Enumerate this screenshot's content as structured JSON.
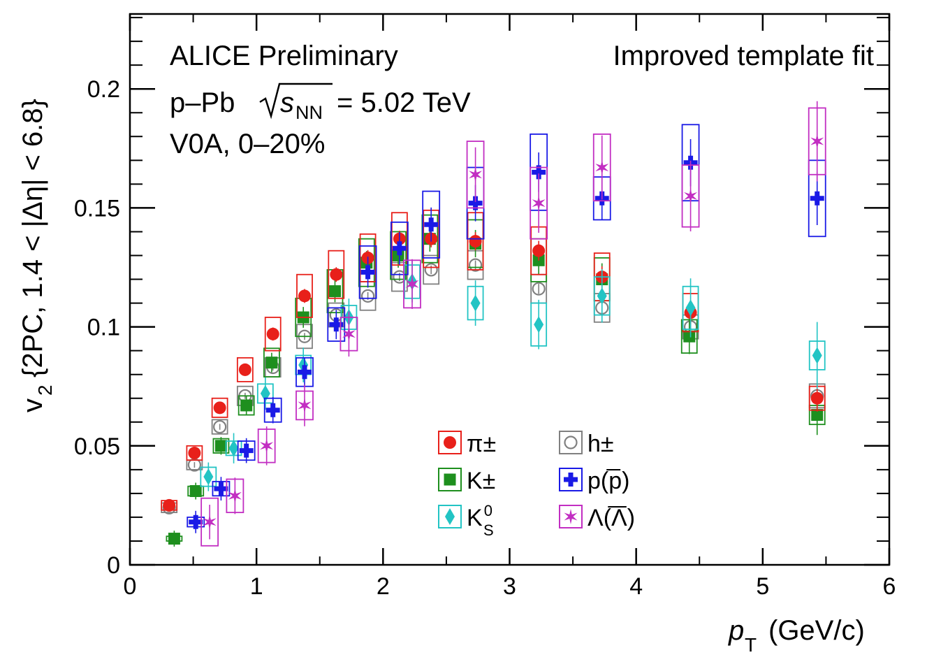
{
  "chart_data": {
    "type": "scatter",
    "title": "",
    "xlabel": "(GeV/c)",
    "xlabel_symbol": "p",
    "xlabel_sub": "T",
    "ylabel": "{2PC, 1.4 < |Δη| < 6.8}",
    "ylabel_symbol": "v",
    "ylabel_sub": "2",
    "xlim": [
      0,
      6
    ],
    "ylim": [
      0,
      0.2
    ],
    "x_ticks": [
      "0",
      "1",
      "2",
      "3",
      "4",
      "5",
      "6"
    ],
    "y_ticks": [
      "0",
      "0.05",
      "0.1",
      "0.15",
      "0.2"
    ],
    "annotations": {
      "line1": "ALICE Preliminary",
      "line2_prefix": "p–Pb",
      "line2_s": "s",
      "line2_sub": "NN",
      "line2_value": "= 5.02 TeV",
      "line3": "V0A, 0–20%",
      "right": "Improved template fit"
    },
    "legend_position": "bottom-center",
    "series": [
      {
        "name": "π±",
        "color": "#e8201a",
        "marker": "circle",
        "x": [
          0.31,
          0.51,
          0.71,
          0.91,
          1.13,
          1.38,
          1.63,
          1.88,
          2.13,
          2.38,
          2.73,
          3.23,
          3.73,
          4.43,
          5.43
        ],
        "y": [
          0.025,
          0.047,
          0.066,
          0.082,
          0.097,
          0.113,
          0.122,
          0.129,
          0.137,
          0.137,
          0.136,
          0.132,
          0.121,
          0.106,
          0.07
        ],
        "sys": [
          0.002,
          0.003,
          0.004,
          0.005,
          0.007,
          0.009,
          0.01,
          0.01,
          0.011,
          0.012,
          0.012,
          0.01,
          0.01,
          0.008,
          0.005
        ]
      },
      {
        "name": "K±",
        "color": "#1e8f1e",
        "marker": "square",
        "x": [
          0.35,
          0.52,
          0.72,
          0.92,
          1.12,
          1.37,
          1.62,
          1.87,
          2.12,
          2.37,
          2.73,
          3.23,
          3.73,
          4.42,
          5.43
        ],
        "y": [
          0.011,
          0.031,
          0.05,
          0.067,
          0.085,
          0.104,
          0.115,
          0.127,
          0.13,
          0.137,
          0.135,
          0.128,
          0.12,
          0.096,
          0.063
        ],
        "sys": [
          0.001,
          0.002,
          0.003,
          0.004,
          0.006,
          0.008,
          0.009,
          0.01,
          0.01,
          0.01,
          0.01,
          0.009,
          0.009,
          0.007,
          0.004
        ]
      },
      {
        "name": "K",
        "label_sup": "0",
        "label_sub": "S",
        "color": "#22c4c4",
        "marker": "diamond",
        "x": [
          0.62,
          0.82,
          1.07,
          1.37,
          1.73,
          2.23,
          2.73,
          3.23,
          3.73,
          4.43,
          5.43
        ],
        "y": [
          0.037,
          0.049,
          0.072,
          0.084,
          0.104,
          0.119,
          0.11,
          0.101,
          0.113,
          0.108,
          0.088
        ],
        "sys": [
          0.004,
          0.003,
          0.004,
          0.004,
          0.005,
          0.007,
          0.007,
          0.009,
          0.008,
          0.009,
          0.006
        ]
      },
      {
        "name": "h±",
        "color": "#808080",
        "marker": "open-circle",
        "x": [
          0.31,
          0.51,
          0.71,
          0.91,
          1.13,
          1.38,
          1.63,
          1.88,
          2.13,
          2.38,
          2.73,
          3.23,
          3.73,
          4.43,
          5.43
        ],
        "y": [
          0.024,
          0.042,
          0.058,
          0.071,
          0.083,
          0.096,
          0.105,
          0.113,
          0.121,
          0.124,
          0.126,
          0.116,
          0.108,
          0.1,
          0.071
        ],
        "sys": [
          0.002,
          0.002,
          0.003,
          0.004,
          0.004,
          0.005,
          0.005,
          0.006,
          0.006,
          0.006,
          0.006,
          0.006,
          0.006,
          0.005,
          0.005
        ]
      },
      {
        "name": "p(p)",
        "overline": true,
        "color": "#1a1ae6",
        "marker": "cross",
        "x": [
          0.52,
          0.72,
          0.92,
          1.13,
          1.38,
          1.63,
          1.88,
          2.13,
          2.38,
          2.73,
          3.23,
          3.73,
          4.43,
          5.43
        ],
        "y": [
          0.018,
          0.032,
          0.048,
          0.065,
          0.081,
          0.101,
          0.123,
          0.133,
          0.143,
          0.152,
          0.165,
          0.154,
          0.169,
          0.154
        ],
        "sys": [
          0.002,
          0.003,
          0.004,
          0.005,
          0.006,
          0.007,
          0.011,
          0.011,
          0.014,
          0.015,
          0.016,
          0.009,
          0.016,
          0.016
        ]
      },
      {
        "name": "Λ(Λ)",
        "overline": true,
        "color": "#c22ec2",
        "marker": "star",
        "x": [
          0.63,
          0.83,
          1.08,
          1.38,
          1.73,
          2.23,
          2.73,
          3.23,
          3.73,
          4.43,
          5.43
        ],
        "y": [
          0.018,
          0.029,
          0.05,
          0.067,
          0.097,
          0.118,
          0.164,
          0.152,
          0.167,
          0.155,
          0.178
        ],
        "sys": [
          0.01,
          0.007,
          0.007,
          0.006,
          0.007,
          0.01,
          0.014,
          0.015,
          0.014,
          0.013,
          0.014
        ]
      }
    ]
  }
}
